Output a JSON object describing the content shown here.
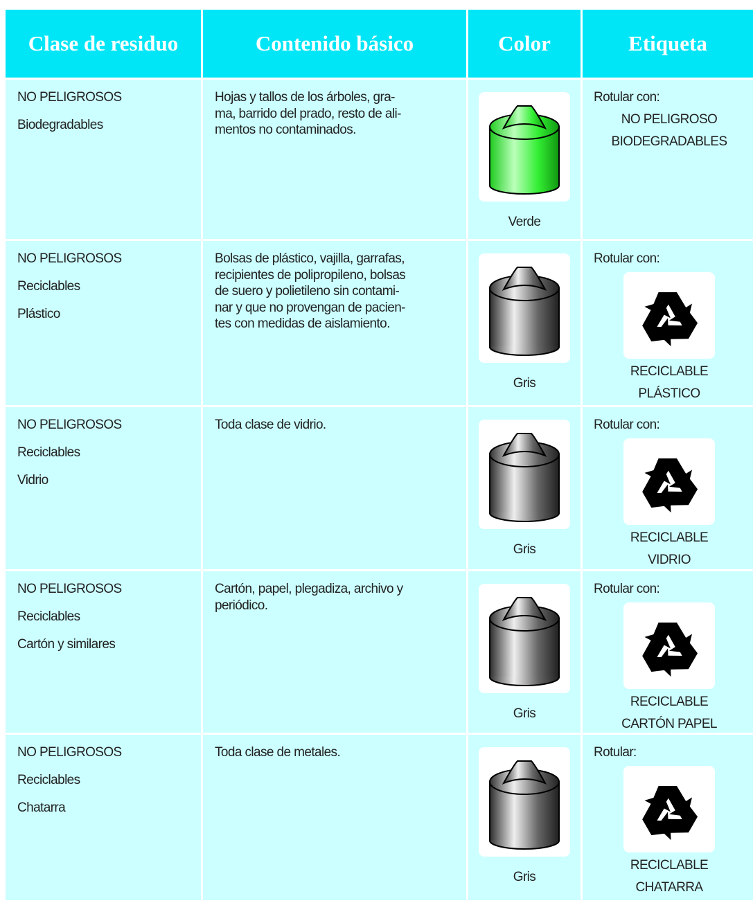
{
  "table": {
    "columns": [
      "Clase de residuo",
      "Contenido básico",
      "Color",
      "Etiqueta"
    ],
    "rows": [
      {
        "clase": [
          "NO PELIGROSOS",
          "Biodegradables"
        ],
        "contenido": [
          "Hojas y tallos de los árboles, gra-",
          "ma, barrido del prado, resto de ali-",
          "mentos no contaminados."
        ],
        "color": "Verde",
        "icon_color": "green",
        "etiqueta_prefix": "Rotular con:",
        "etiqueta": [
          "NO PELIGROSO",
          "BIODEGRADABLES"
        ],
        "recycle_icon": false
      },
      {
        "clase": [
          "NO PELIGROSOS",
          "Reciclables",
          "Plástico"
        ],
        "contenido": [
          "Bolsas de plástico, vajilla, garrafas,",
          "recipientes de polipropileno, bolsas",
          "de suero y polietileno sin contami-",
          "nar y que no provengan de pacien-",
          "tes con medidas de aislamiento."
        ],
        "color": "Gris",
        "icon_color": "gray",
        "etiqueta_prefix": "Rotular con:",
        "etiqueta": [
          "RECICLABLE",
          "PLÁSTICO"
        ],
        "recycle_icon": true
      },
      {
        "clase": [
          "NO PELIGROSOS",
          "Reciclables",
          "Vidrio"
        ],
        "contenido": [
          "Toda clase de vidrio."
        ],
        "color": "Gris",
        "icon_color": "gray",
        "etiqueta_prefix": "Rotular con:",
        "etiqueta": [
          "RECICLABLE",
          "VIDRIO"
        ],
        "recycle_icon": true
      },
      {
        "clase": [
          "NO PELIGROSOS",
          "Reciclables",
          "Cartón y similares"
        ],
        "contenido": [
          "Cartón, papel, plegadiza, archivo y",
          "periódico."
        ],
        "color": "Gris",
        "icon_color": "gray",
        "etiqueta_prefix": "Rotular con:",
        "etiqueta": [
          "RECICLABLE",
          "CARTÓN PAPEL"
        ],
        "recycle_icon": true
      },
      {
        "clase": [
          "NO PELIGROSOS",
          "Reciclables",
          "Chatarra"
        ],
        "contenido": [
          "Toda clase de metales."
        ],
        "color": "Gris",
        "icon_color": "gray",
        "etiqueta_prefix": "Rotular:",
        "etiqueta": [
          "RECICLABLE",
          "CHATARRA"
        ],
        "recycle_icon": true
      }
    ]
  }
}
